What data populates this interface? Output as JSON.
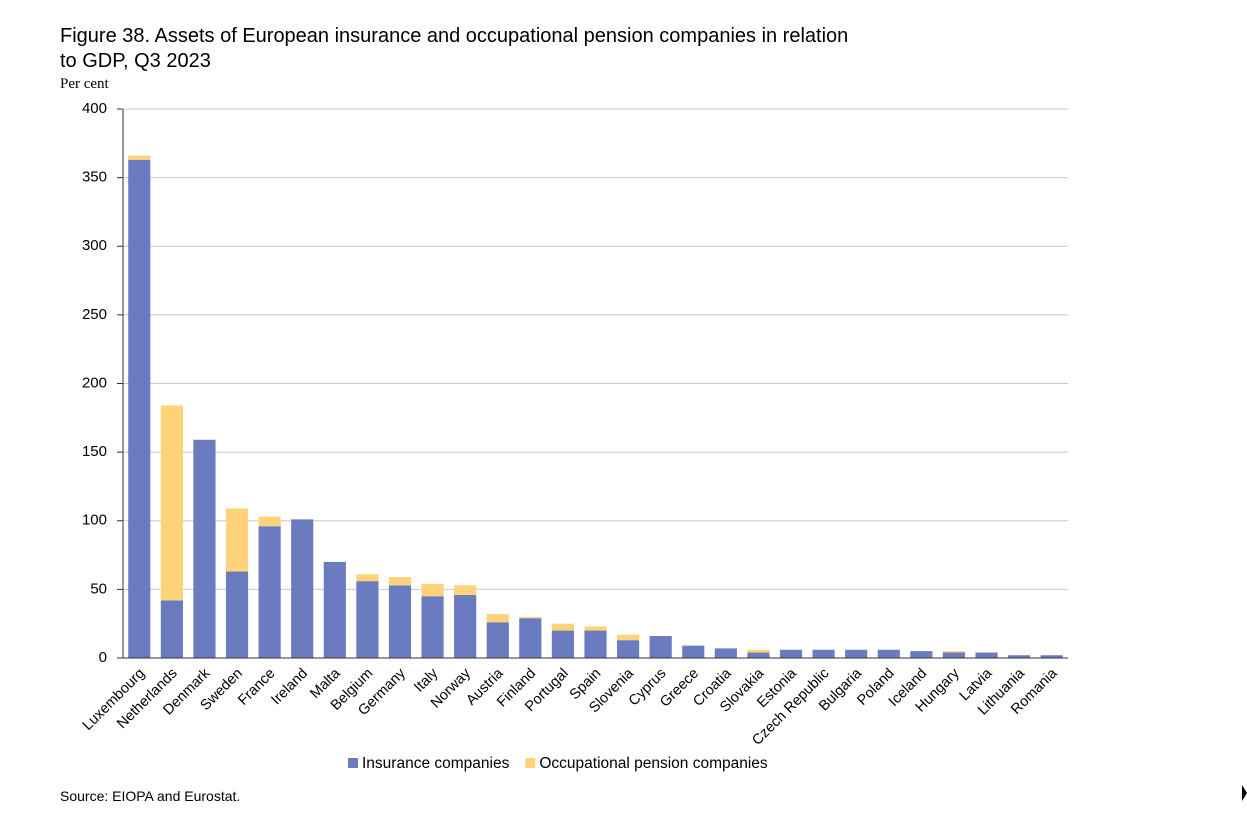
{
  "chart_data": {
    "type": "stacked_bar",
    "title": [
      "Figure 38. Assets of European insurance and occupational pension companies in relation",
      "to GDP, Q3 2023"
    ],
    "y_label": "Per cent",
    "source": "Source: EIOPA and Eurostat.",
    "categories": [
      "Luxembourg",
      "Netherlands",
      "Denmark",
      "Sweden",
      "France",
      "Ireland",
      "Malta",
      "Belgium",
      "Germany",
      "Italy",
      "Norway",
      "Austria",
      "Finland",
      "Portugal",
      "Spain",
      "Slovenia",
      "Cyprus",
      "Greece",
      "Croatia",
      "Slovakia",
      "Estonia",
      "Czech Republic",
      "Bulgaria",
      "Poland",
      "Iceland",
      "Hungary",
      "Latvia",
      "Lithuania",
      "Romania"
    ],
    "series": [
      {
        "name": "Insurance companies",
        "color": "#6b7bc0",
        "values": [
          363,
          42,
          159,
          63,
          96,
          101,
          70,
          56,
          53,
          45,
          46,
          26,
          29,
          20,
          20,
          13,
          16,
          9,
          7,
          4,
          6,
          6,
          6,
          6,
          5,
          4,
          4,
          2,
          2
        ]
      },
      {
        "name": "Occupational pension companies",
        "color": "#ffd37a",
        "values": [
          3,
          142,
          0,
          46,
          7,
          0,
          0,
          5,
          6,
          9,
          7,
          6,
          1,
          5,
          3,
          4,
          0,
          0,
          0,
          2,
          0,
          0,
          0,
          0,
          0,
          1,
          0,
          0,
          0
        ]
      }
    ],
    "ylim": [
      0,
      400
    ],
    "yticks": [
      0,
      50,
      100,
      150,
      200,
      250,
      300,
      350,
      400
    ],
    "grid": true
  }
}
